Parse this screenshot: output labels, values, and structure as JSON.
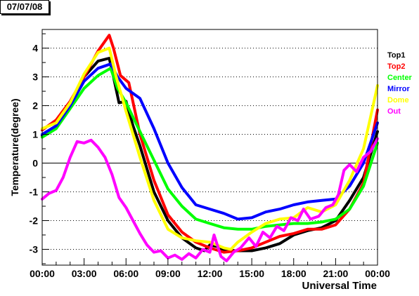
{
  "date_label": "07/07/08",
  "chart_data": {
    "type": "line",
    "xlabel": "Universal Time",
    "ylabel": "Temperature(degree)",
    "xlim": [
      0,
      24
    ],
    "ylim": [
      -3.55,
      4.65
    ],
    "x_ticks": [
      {
        "value": 0,
        "label": "00:00"
      },
      {
        "value": 3,
        "label": "03:00"
      },
      {
        "value": 6,
        "label": "06:00"
      },
      {
        "value": 9,
        "label": "09:00"
      },
      {
        "value": 12,
        "label": "12:00"
      },
      {
        "value": 15,
        "label": "15:00"
      },
      {
        "value": 18,
        "label": "18:00"
      },
      {
        "value": 21,
        "label": "21:00"
      },
      {
        "value": 24,
        "label": "00:00"
      }
    ],
    "y_ticks": [
      -3,
      -2,
      -1,
      0,
      1,
      2,
      3,
      4
    ],
    "grid": "horizontal-dotted",
    "zero_line": true,
    "legend": "right",
    "series": [
      {
        "name": "Top1",
        "color": "#000000",
        "x": [
          0,
          1,
          2,
          3,
          4,
          4.8,
          5.1,
          5.5,
          6,
          6.5,
          7,
          8,
          9,
          10,
          11,
          11.6,
          12,
          12.5,
          13,
          14,
          15,
          16,
          17,
          18,
          19,
          20,
          21,
          22,
          23,
          24
        ],
        "y": [
          0.95,
          1.3,
          2.1,
          3.0,
          3.55,
          3.65,
          3.0,
          2.1,
          2.15,
          1.3,
          0.6,
          -1.0,
          -2.0,
          -2.6,
          -2.95,
          -3.05,
          -2.85,
          -2.9,
          -3.05,
          -3.05,
          -3.05,
          -2.95,
          -2.8,
          -2.5,
          -2.35,
          -2.25,
          -2.0,
          -1.3,
          -0.5,
          1.1
        ]
      },
      {
        "name": "Top2",
        "color": "#ff0000",
        "x": [
          0,
          1,
          2,
          3,
          4,
          4.8,
          5.1,
          5.6,
          6.2,
          7,
          8,
          9,
          10,
          11,
          12,
          13,
          14,
          15,
          16,
          17,
          18,
          19,
          20,
          21,
          22,
          23,
          24
        ],
        "y": [
          1.15,
          1.5,
          2.15,
          3.0,
          3.9,
          4.45,
          4.0,
          3.05,
          2.8,
          1.0,
          -0.6,
          -1.8,
          -2.4,
          -2.75,
          -2.95,
          -3.1,
          -3.05,
          -2.95,
          -2.75,
          -2.55,
          -2.45,
          -2.3,
          -2.3,
          -2.15,
          -1.6,
          -0.7,
          1.85
        ]
      },
      {
        "name": "Center",
        "color": "#00ff00",
        "x": [
          0,
          1,
          2,
          3,
          4,
          4.9,
          5.4,
          6,
          7,
          8,
          9,
          10,
          11,
          12,
          13,
          14,
          15,
          16,
          17,
          18,
          19,
          20,
          21,
          22,
          23,
          24
        ],
        "y": [
          0.9,
          1.2,
          1.9,
          2.6,
          3.05,
          3.3,
          2.6,
          2.1,
          1.1,
          0.1,
          -0.9,
          -1.5,
          -1.95,
          -2.1,
          -2.25,
          -2.3,
          -2.3,
          -2.2,
          -2.15,
          -2.1,
          -2.1,
          -2.05,
          -1.95,
          -1.6,
          -0.8,
          0.7
        ]
      },
      {
        "name": "Mirror",
        "color": "#0000ff",
        "x": [
          0,
          1,
          2,
          3,
          4,
          4.9,
          5.4,
          6,
          7,
          8,
          9,
          10,
          11,
          12,
          13,
          14,
          15,
          16,
          17,
          18,
          19,
          20,
          21,
          22,
          23,
          24
        ],
        "y": [
          1.0,
          1.3,
          2.0,
          2.85,
          3.3,
          3.45,
          3.0,
          2.6,
          2.25,
          1.2,
          0.0,
          -0.85,
          -1.45,
          -1.6,
          -1.75,
          -1.95,
          -1.9,
          -1.7,
          -1.6,
          -1.45,
          -1.35,
          -1.3,
          -1.25,
          -0.8,
          0.0,
          1.4
        ]
      },
      {
        "name": "Dome",
        "color": "#ffff00",
        "x": [
          0,
          1,
          2,
          3,
          4,
          4.8,
          5.3,
          6,
          7,
          8,
          9,
          10,
          11,
          12,
          13,
          13.5,
          14,
          15,
          16,
          17,
          18,
          19,
          20,
          21,
          22,
          23,
          24
        ],
        "y": [
          1.2,
          1.4,
          2.1,
          3.1,
          3.85,
          4.0,
          3.0,
          1.8,
          0.2,
          -1.3,
          -2.3,
          -2.6,
          -2.7,
          -2.75,
          -2.95,
          -3.0,
          -2.75,
          -2.4,
          -2.1,
          -1.95,
          -1.9,
          -1.55,
          -1.7,
          -1.45,
          -0.6,
          0.5,
          2.7
        ]
      },
      {
        "name": "Out",
        "color": "#ff00ff",
        "x": [
          0,
          0.5,
          1,
          1.5,
          2,
          2.5,
          3,
          3.5,
          4,
          4.5,
          5,
          5.5,
          6,
          6.5,
          7,
          7.5,
          8,
          8.5,
          9,
          9.5,
          10,
          10.5,
          11,
          11.5,
          12,
          12.3,
          12.8,
          13.2,
          13.7,
          14.2,
          14.8,
          15.3,
          15.8,
          16.3,
          16.8,
          17.3,
          17.8,
          18.3,
          18.7,
          19.2,
          19.8,
          20.3,
          20.8,
          21.2,
          21.6,
          22,
          22.5,
          23,
          23.5,
          24
        ],
        "y": [
          -1.25,
          -1.05,
          -0.95,
          -0.5,
          0.2,
          0.75,
          0.7,
          0.8,
          0.55,
          0.2,
          -0.4,
          -1.2,
          -1.55,
          -2.0,
          -2.45,
          -2.85,
          -3.1,
          -3.05,
          -3.3,
          -3.2,
          -3.35,
          -3.15,
          -3.3,
          -3.0,
          -3.1,
          -2.5,
          -3.25,
          -3.4,
          -3.1,
          -2.95,
          -2.6,
          -2.9,
          -2.4,
          -2.6,
          -2.2,
          -2.35,
          -1.9,
          -2.0,
          -1.6,
          -1.95,
          -1.85,
          -1.55,
          -1.45,
          -1.1,
          -0.25,
          -0.05,
          -0.3,
          0.2,
          0.4,
          0.85
        ]
      }
    ]
  }
}
